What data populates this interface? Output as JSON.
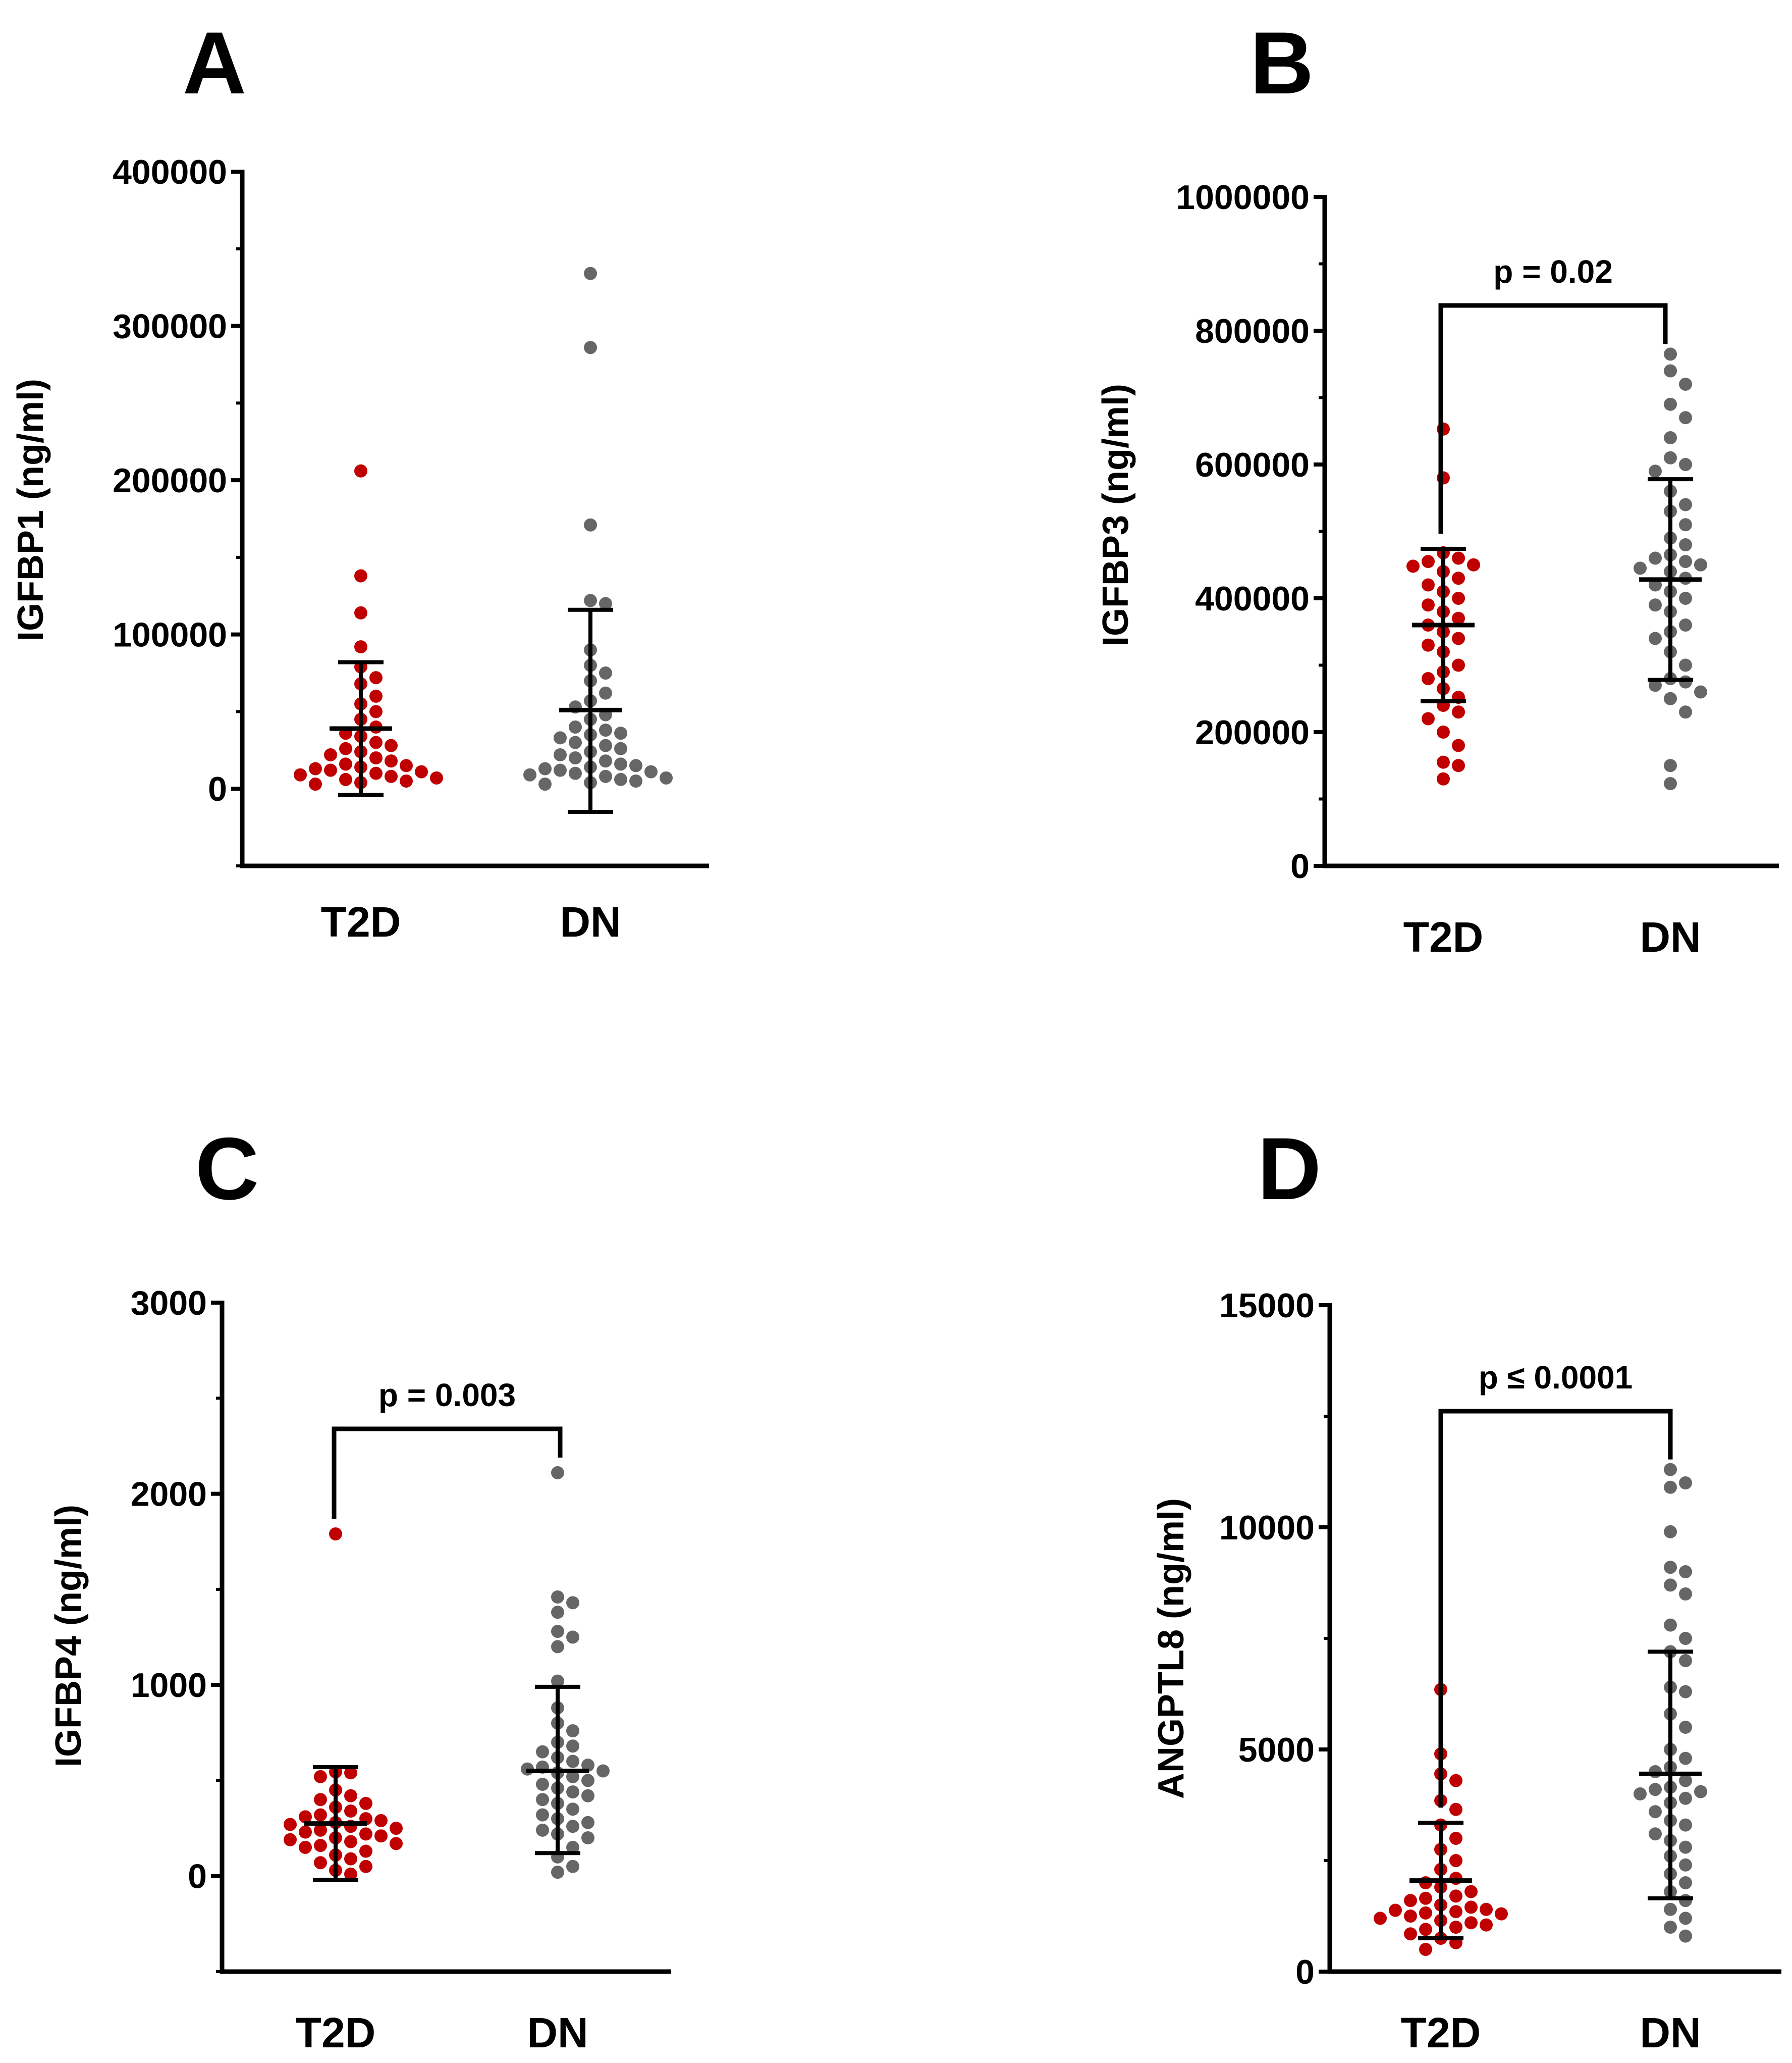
{
  "chart_data": [
    {
      "type": "scatter",
      "panel_label": "A",
      "ylabel": "IGFBP1 (ng/ml)",
      "categories": [
        "T2D",
        "DN"
      ],
      "y_ticks": [
        "0",
        "100000",
        "200000",
        "300000",
        "400000"
      ],
      "ylim": [
        -50000,
        400000
      ],
      "minor_step": 50000,
      "p_value": null,
      "series": [
        {
          "name": "T2D",
          "color": "#c00000",
          "values": [
            206000,
            138000,
            114000,
            92000,
            79000,
            72000,
            68000,
            60000,
            55000,
            50000,
            45000,
            40000,
            36000,
            34000,
            30000,
            28000,
            26000,
            24000,
            22000,
            20000,
            18000,
            16000,
            15000,
            14000,
            13000,
            12000,
            11000,
            10000,
            9000,
            8000,
            7000,
            6000,
            5000,
            4000,
            3000
          ],
          "mean": 39000,
          "sd_low": -4000,
          "sd_high": 82000
        },
        {
          "name": "DN",
          "color": "#666666",
          "values": [
            334000,
            286000,
            171000,
            122000,
            120000,
            90000,
            80000,
            75000,
            70000,
            62000,
            57000,
            53000,
            48000,
            45000,
            40000,
            38000,
            36000,
            35000,
            33000,
            30000,
            28000,
            26000,
            24000,
            22000,
            20000,
            18000,
            16000,
            15000,
            14000,
            13000,
            12000,
            11000,
            10000,
            9000,
            8000,
            7000,
            6000,
            5000,
            4000,
            3000
          ],
          "mean": 51000,
          "sd_low": -15000,
          "sd_high": 116000
        }
      ]
    },
    {
      "type": "scatter",
      "panel_label": "B",
      "ylabel": "IGFBP3 (ng/ml)",
      "categories": [
        "T2D",
        "DN"
      ],
      "y_ticks": [
        "0",
        "200000",
        "400000",
        "600000",
        "800000",
        "1000000"
      ],
      "ylim": [
        0,
        1000000
      ],
      "minor_step": 100000,
      "p_value": "p = 0.02",
      "series": [
        {
          "name": "T2D",
          "color": "#c00000",
          "values": [
            653000,
            580000,
            468000,
            460000,
            455000,
            450000,
            448000,
            440000,
            430000,
            420000,
            410000,
            400000,
            390000,
            380000,
            370000,
            360000,
            350000,
            340000,
            330000,
            320000,
            300000,
            290000,
            280000,
            265000,
            252000,
            240000,
            230000,
            220000,
            200000,
            180000,
            155000,
            150000,
            130000
          ],
          "mean": 360000,
          "sd_low": 246000,
          "sd_high": 474000
        },
        {
          "name": "DN",
          "color": "#666666",
          "values": [
            765000,
            740000,
            720000,
            690000,
            670000,
            640000,
            610000,
            600000,
            590000,
            560000,
            540000,
            530000,
            510000,
            490000,
            480000,
            465000,
            460000,
            455000,
            450000,
            445000,
            440000,
            430000,
            420000,
            410000,
            400000,
            390000,
            380000,
            360000,
            350000,
            340000,
            320000,
            300000,
            280000,
            275000,
            270000,
            260000,
            250000,
            230000,
            150000,
            123000
          ],
          "mean": 428000,
          "sd_low": 278000,
          "sd_high": 578000
        }
      ]
    },
    {
      "type": "scatter",
      "panel_label": "C",
      "ylabel": "IGFBP4 (ng/ml)",
      "categories": [
        "T2D",
        "DN"
      ],
      "y_ticks": [
        "0",
        "1000",
        "2000",
        "3000"
      ],
      "ylim": [
        -500,
        3000
      ],
      "minor_step": 500,
      "p_value": "p = 0.003",
      "series": [
        {
          "name": "T2D",
          "color": "#c00000",
          "values": [
            1790,
            545,
            540,
            520,
            450,
            420,
            400,
            380,
            360,
            340,
            320,
            310,
            300,
            290,
            280,
            270,
            260,
            250,
            240,
            230,
            220,
            210,
            200,
            190,
            180,
            170,
            160,
            150,
            130,
            110,
            90,
            70,
            50,
            30,
            10
          ],
          "mean": 275,
          "sd_low": -20,
          "sd_high": 570
        },
        {
          "name": "DN",
          "color": "#666666",
          "values": [
            2110,
            1460,
            1430,
            1380,
            1280,
            1250,
            1200,
            1020,
            880,
            800,
            760,
            700,
            680,
            650,
            620,
            600,
            580,
            570,
            560,
            550,
            540,
            520,
            500,
            480,
            460,
            440,
            420,
            400,
            380,
            350,
            320,
            300,
            280,
            260,
            240,
            220,
            200,
            150,
            100,
            50,
            20
          ],
          "mean": 550,
          "sd_low": 120,
          "sd_high": 990
        }
      ]
    },
    {
      "type": "scatter",
      "panel_label": "D",
      "ylabel": "ANGPTL8 (ng/ml)",
      "categories": [
        "T2D",
        "DN"
      ],
      "y_ticks": [
        "0",
        "5000",
        "10000",
        "15000"
      ],
      "ylim": [
        0,
        15000
      ],
      "minor_step": 2500,
      "p_value": "p ≤ 0.0001",
      "series": [
        {
          "name": "T2D",
          "color": "#c00000",
          "values": [
            6350,
            4900,
            4450,
            4300,
            3850,
            3650,
            3300,
            3000,
            2750,
            2500,
            2300,
            2100,
            2000,
            1900,
            1800,
            1700,
            1650,
            1600,
            1500,
            1450,
            1400,
            1380,
            1350,
            1320,
            1300,
            1250,
            1200,
            1150,
            1100,
            1050,
            1000,
            950,
            850,
            750,
            650,
            500
          ],
          "mean": 2050,
          "sd_low": 750,
          "sd_high": 3350
        },
        {
          "name": "DN",
          "color": "#666666",
          "values": [
            11300,
            11000,
            10900,
            9900,
            9100,
            9000,
            8700,
            8500,
            7800,
            7500,
            7200,
            7000,
            6400,
            6300,
            5800,
            5500,
            5000,
            4800,
            4600,
            4500,
            4300,
            4150,
            4100,
            4050,
            4000,
            3900,
            3800,
            3600,
            3400,
            3300,
            3100,
            2950,
            2800,
            2600,
            2400,
            2200,
            2000,
            1800,
            1600,
            1400,
            1200,
            1000,
            800
          ],
          "mean": 4450,
          "sd_low": 1650,
          "sd_high": 7200
        }
      ]
    }
  ]
}
